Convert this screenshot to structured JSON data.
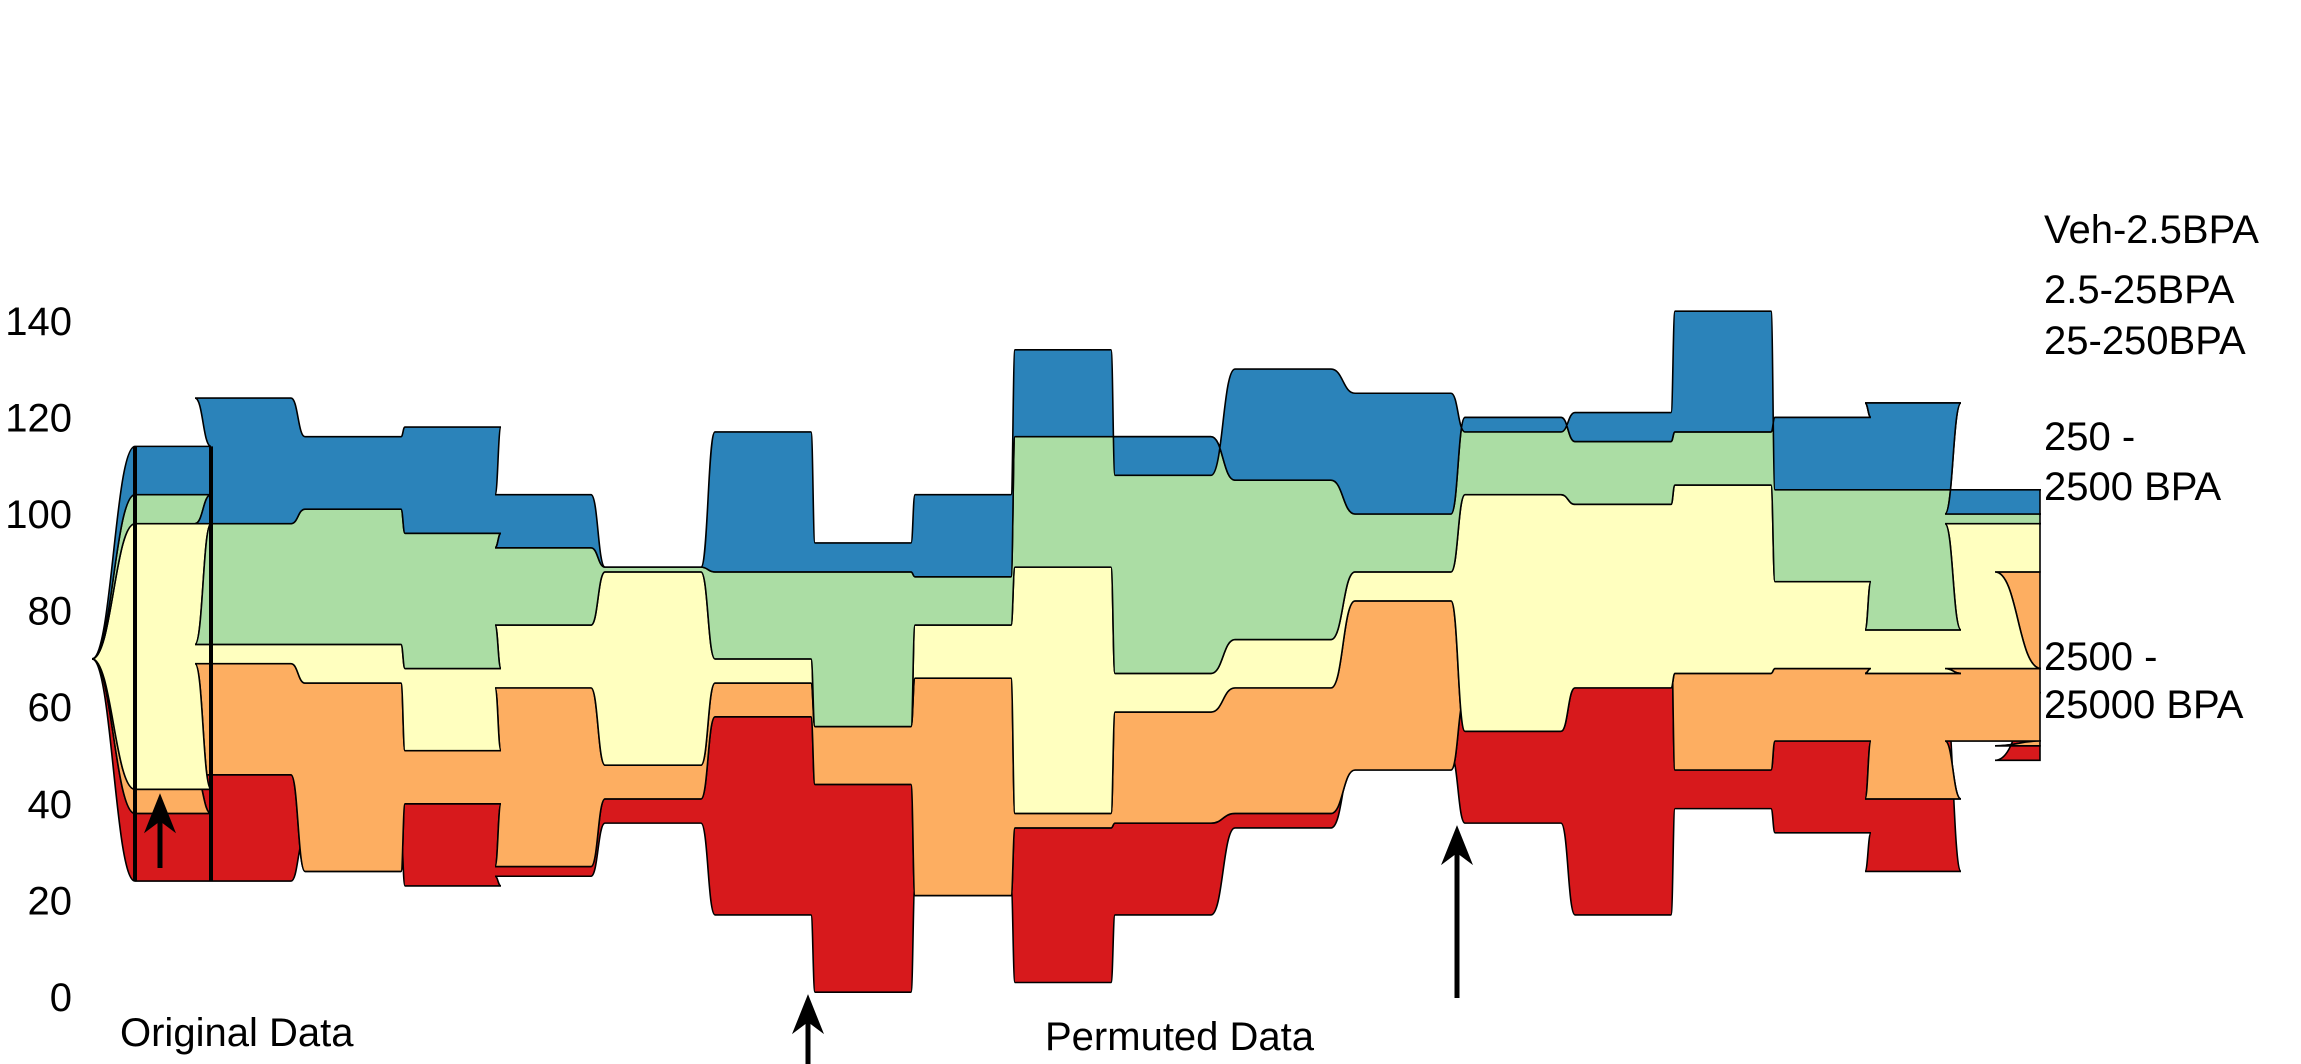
{
  "chart_data": {
    "type": "area",
    "title": "",
    "xlabel": "",
    "ylabel": "",
    "ylim": [
      0,
      140
    ],
    "yticks": [
      0,
      20,
      40,
      60,
      80,
      100,
      120,
      140
    ],
    "grid": false,
    "legend": "right",
    "x": [
      0,
      1,
      2,
      3,
      4,
      5,
      6,
      7,
      8,
      9,
      10,
      11,
      12,
      13,
      14,
      15,
      16,
      17,
      18,
      19,
      20
    ],
    "original_index": 0,
    "boundaries": [
      [
        24,
        24,
        33,
        23,
        25,
        36,
        17,
        1,
        23,
        3,
        17,
        35,
        50,
        36,
        17,
        39,
        34,
        26,
        63,
        49,
        17
      ],
      [
        38,
        46,
        26,
        40,
        27,
        41,
        58,
        44,
        21,
        35,
        36,
        38,
        47,
        62,
        76,
        47,
        53,
        41,
        53,
        52,
        63
      ],
      [
        43,
        69,
        65,
        51,
        64,
        48,
        65,
        56,
        66,
        38,
        59,
        64,
        82,
        55,
        64,
        67,
        68,
        67,
        68,
        88,
        88
      ],
      [
        98,
        73,
        73,
        68,
        77,
        88,
        70,
        56,
        77,
        89,
        67,
        74,
        88,
        104,
        102,
        106,
        86,
        76,
        98,
        98,
        98
      ],
      [
        104,
        98,
        101,
        96,
        93,
        89,
        88,
        88,
        87,
        116,
        116,
        107,
        100,
        120,
        115,
        117,
        120,
        123,
        100,
        100,
        100
      ],
      [
        114,
        124,
        116,
        118,
        104,
        89,
        117,
        94,
        104,
        134,
        108,
        130,
        125,
        117,
        121,
        142,
        105,
        105,
        105,
        105,
        105
      ]
    ],
    "series": [
      {
        "name": "2500 - 25000 BPA",
        "lines": [
          "2500 -",
          "25000 BPA"
        ],
        "color": "#d7191c"
      },
      {
        "name": "250 - 2500 BPA",
        "lines": [
          "250 -",
          "2500 BPA"
        ],
        "color": "#fdae61"
      },
      {
        "name": "25-250BPA",
        "lines": [
          "25-250BPA"
        ],
        "color": "#ffffbf"
      },
      {
        "name": "2.5-25BPA",
        "lines": [
          "2.5-25BPA"
        ],
        "color": "#abdda4"
      },
      {
        "name": "Veh-2.5BPA",
        "lines": [
          "Veh-2.5BPA"
        ],
        "color": "#2b83ba"
      }
    ],
    "annotations": [
      {
        "text": "Original Data"
      },
      {
        "text": "Permuted Data"
      }
    ]
  }
}
